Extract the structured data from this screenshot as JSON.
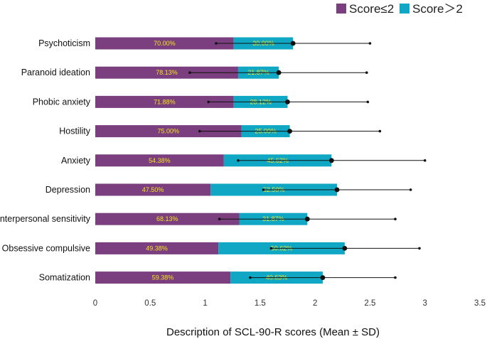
{
  "chart_data": {
    "type": "bar",
    "stacked": true,
    "orientation": "horizontal",
    "title": "",
    "xlabel": "Description of SCL-90-R scores (Mean ± SD)",
    "ylabel": "",
    "xlim": [
      0,
      3.5
    ],
    "xticks": [
      "0",
      "0.5",
      "1",
      "1.5",
      "2",
      "2.5",
      "3",
      "3.5"
    ],
    "grid": false,
    "legend_position": "top-right",
    "categories": [
      "Psychoticism",
      "Paranoid ideation",
      "Phobic anxiety",
      "Hostility",
      "Anxiety",
      "Depression",
      "Interpersonal sensitivity",
      "Obsessive compulsive",
      "Somatization"
    ],
    "mean": [
      1.8,
      1.67,
      1.75,
      1.77,
      2.15,
      2.2,
      1.93,
      2.27,
      2.07
    ],
    "sd_low": [
      1.1,
      0.86,
      1.03,
      0.95,
      1.3,
      1.53,
      1.13,
      1.6,
      1.41
    ],
    "sd_high": [
      2.5,
      2.47,
      2.48,
      2.59,
      3.0,
      2.87,
      2.73,
      2.95,
      2.73
    ],
    "series": [
      {
        "name": "Score≤2",
        "color": "#7b3f7f",
        "percent_labels": [
          "70.00%",
          "78.13%",
          "71.88%",
          "75.00%",
          "54.38%",
          "47.50%",
          "68.13%",
          "49.38%",
          "59.38%"
        ],
        "values": [
          1.26,
          1.3,
          1.26,
          1.33,
          1.17,
          1.05,
          1.31,
          1.12,
          1.23
        ]
      },
      {
        "name": "Score＞2",
        "color": "#0fa7c4",
        "percent_labels": [
          "30.00%",
          "21.87%",
          "28.12%",
          "25.00%",
          "45.62%",
          "52.50%",
          "31.87%",
          "50.62%",
          "40.63%"
        ],
        "values": [
          0.54,
          0.37,
          0.49,
          0.44,
          0.98,
          1.15,
          0.62,
          1.15,
          0.84
        ]
      }
    ]
  }
}
